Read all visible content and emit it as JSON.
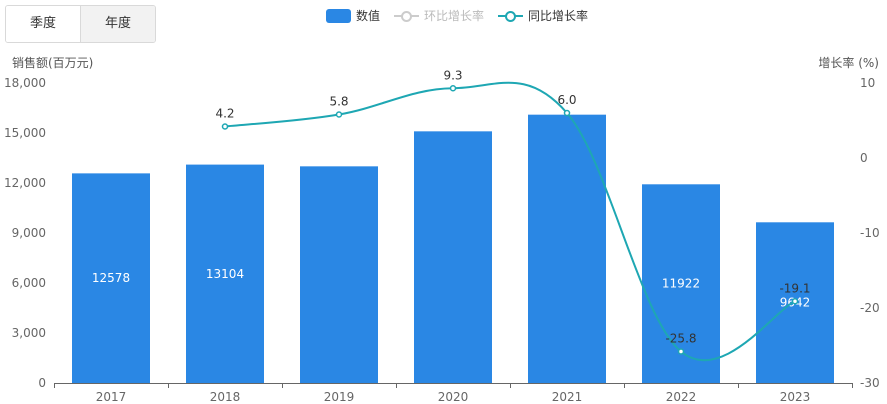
{
  "tabs": [
    {
      "label": "季度",
      "active": false
    },
    {
      "label": "年度",
      "active": true
    }
  ],
  "legend": [
    {
      "label": "数值",
      "kind": "bar",
      "color": "#2a87e4",
      "enabled": true
    },
    {
      "label": "环比增长率",
      "kind": "line",
      "color": "#bbbbbb",
      "enabled": false
    },
    {
      "label": "同比增长率",
      "kind": "line",
      "color": "#1ea7b3",
      "enabled": true
    }
  ],
  "chart_data": {
    "type": "bar",
    "categories": [
      "2017",
      "2018",
      "2019",
      "2020",
      "2021",
      "2022",
      "2023"
    ],
    "series": [
      {
        "name": "数值",
        "type": "bar",
        "axis": "left",
        "color": "#2a87e4",
        "values": [
          12578,
          13104,
          13000,
          15100,
          16100,
          11922,
          9642
        ],
        "labels": [
          "12578",
          "13104",
          "",
          "",
          "",
          "11922",
          "9642"
        ]
      },
      {
        "name": "同比增长率",
        "type": "line",
        "axis": "right",
        "color": "#1ea7b3",
        "values": [
          null,
          4.2,
          5.8,
          9.3,
          6.0,
          -25.8,
          -19.1
        ],
        "labels": [
          "",
          "4.2",
          "5.8",
          "9.3",
          "6.0",
          "-25.8",
          "-19.1"
        ]
      }
    ],
    "ylabel": "销售额(百万元)",
    "ylabel_right": "增长率  (%)",
    "ylim": [
      0,
      18000
    ],
    "yticks": [
      "0",
      "3,000",
      "6,000",
      "9,000",
      "12,000",
      "15,000",
      "18,000"
    ],
    "ylim_right": [
      -30,
      10
    ],
    "yticks_right": [
      "-30",
      "-20",
      "-10",
      "0",
      "10"
    ],
    "grid": false,
    "legend_position": "top-center"
  }
}
